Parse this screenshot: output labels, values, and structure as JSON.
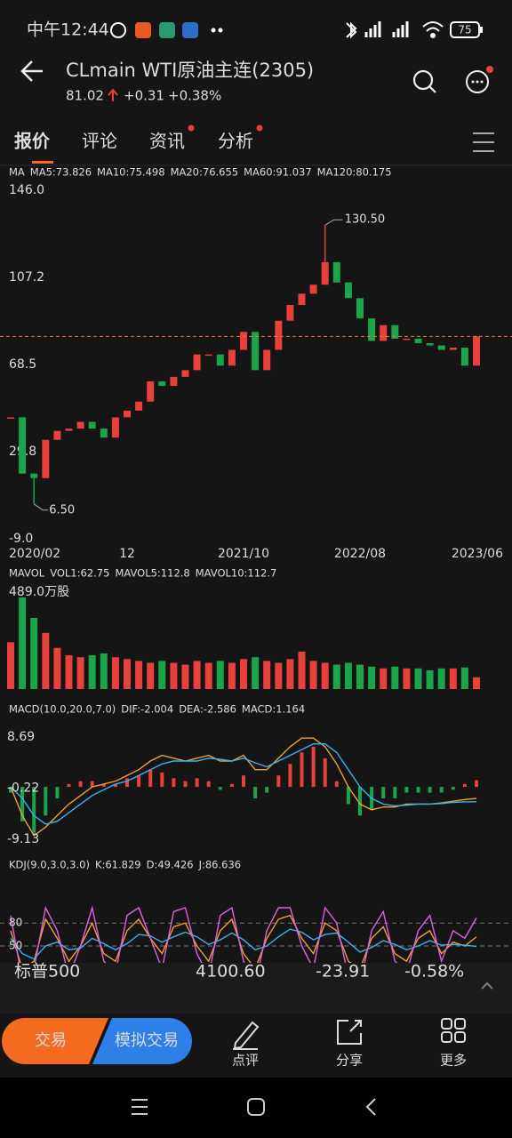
{
  "status_bar": {
    "time": "中午12:44",
    "battery": "75"
  },
  "header": {
    "title": "CLmain  WTI原油主连(2305)",
    "price": "81.02",
    "change": "+0.31",
    "change_pct": "+0.38%"
  },
  "tabs": [
    "报价",
    "评论",
    "资讯",
    "分析"
  ],
  "chart_data": [
    {
      "type": "candlestick",
      "indicator": "MA",
      "legend": [
        {
          "text": "MA5:73.826",
          "color": "#f0a030"
        },
        {
          "text": "MA10:75.498",
          "color": "#3ab0f0"
        },
        {
          "text": "MA20:76.655",
          "color": "#e060e0"
        },
        {
          "text": "MA60:91.037",
          "color": "#2f7fe8"
        },
        {
          "text": "MA120:80.175",
          "color": "#3ac060"
        }
      ],
      "categories": [
        "2020/02",
        null,
        null,
        null,
        null,
        null,
        null,
        null,
        null,
        null,
        "12",
        null,
        null,
        null,
        null,
        null,
        null,
        null,
        null,
        null,
        "2021/10",
        null,
        null,
        null,
        null,
        null,
        null,
        null,
        null,
        null,
        "2022/08",
        null,
        null,
        null,
        null,
        null,
        null,
        null,
        null,
        null,
        "2023/06"
      ],
      "values": [
        45,
        20,
        18,
        35,
        39,
        40,
        43,
        40,
        36,
        45,
        48,
        52,
        61,
        59,
        63,
        66,
        73,
        73,
        68,
        75,
        83,
        66,
        75,
        88,
        95,
        100,
        104,
        114,
        105,
        98,
        89,
        79,
        86,
        80,
        80,
        78,
        77,
        75,
        76,
        68,
        81.02
      ],
      "up_color": "#e8403a",
      "down_color": "#1aa54a",
      "last_line_color": "#e87a2a",
      "high": {
        "value": 130.5,
        "label": "130.50"
      },
      "low": {
        "value": 6.5,
        "label": "6.50"
      },
      "ylim": [
        -9,
        146
      ],
      "yticks": [
        {
          "value": 146,
          "label": "146.0"
        },
        107.2,
        68.5,
        29.8,
        {
          "value": -9,
          "label": "-9.0"
        }
      ]
    },
    {
      "type": "bar",
      "indicator": "MAVOL",
      "legend": [
        {
          "text": "VOL1:62.75",
          "color": "#e8403a"
        },
        {
          "text": "MAVOL5:112.8",
          "color": "#f0a030"
        },
        {
          "text": "MAVOL10:112.7",
          "color": "#3ab0f0"
        }
      ],
      "values": [
        250,
        489,
        380,
        300,
        220,
        180,
        170,
        180,
        190,
        170,
        160,
        150,
        140,
        150,
        140,
        130,
        150,
        140,
        150,
        140,
        160,
        170,
        150,
        140,
        160,
        200,
        150,
        140,
        130,
        140,
        130,
        120,
        110,
        120,
        110,
        110,
        100,
        110,
        110,
        115,
        62.75
      ],
      "ylim": [
        0,
        489
      ],
      "yticks": [
        {
          "value": 489,
          "label": "489.0万股"
        }
      ]
    },
    {
      "type": "macd",
      "indicator": "MACD(10.0,20.0,7.0)",
      "legend": [
        {
          "text": "DIF:-2.004",
          "color": "#f0a030"
        },
        {
          "text": "DEA:-2.586",
          "color": "#3ab0f0"
        },
        {
          "text": "MACD:1.164",
          "color": "#e060e0"
        }
      ],
      "values": [
        -1,
        -6,
        -8,
        -5,
        -2,
        0.5,
        1,
        1,
        0.5,
        0.5,
        1.5,
        2,
        3,
        2.5,
        1.5,
        1,
        1.5,
        1,
        -0.5,
        0.5,
        2,
        -2,
        -1,
        2,
        4,
        6,
        7,
        5,
        1,
        -3,
        -5,
        -4,
        -2,
        -2,
        -1,
        -1,
        -1,
        -1,
        -0.5,
        0.5,
        1.164
      ],
      "series": [
        {
          "color": "#f0a030",
          "values": [
            0,
            -5,
            -8.5,
            -7,
            -5,
            -3,
            -1.5,
            0,
            0.5,
            1,
            2,
            3,
            4.5,
            5.5,
            5,
            4.5,
            5,
            5.5,
            4.5,
            4.5,
            5.5,
            3,
            3,
            5,
            7,
            8.5,
            8.5,
            7,
            4,
            0,
            -3,
            -4,
            -3.5,
            -3.5,
            -3,
            -3,
            -3,
            -2.8,
            -2.5,
            -2.2,
            -2.004
          ]
        },
        {
          "color": "#3ab0f0",
          "values": [
            0,
            -2,
            -5,
            -6.5,
            -6,
            -4.5,
            -3,
            -1.5,
            -0.5,
            0.5,
            1,
            2,
            3,
            4,
            4.5,
            4.5,
            4.5,
            5,
            4.8,
            4.5,
            5,
            4.2,
            3.5,
            4.5,
            5.5,
            6.5,
            7.5,
            7.5,
            6,
            3,
            0,
            -2,
            -3,
            -3.3,
            -3.2,
            -3,
            -3,
            -2.9,
            -2.7,
            -2.6,
            -2.586
          ]
        }
      ],
      "ylim": [
        -9.13,
        8.69
      ],
      "yticks": [
        8.69,
        -0.22,
        -9.13
      ]
    },
    {
      "type": "line",
      "indicator": "KDJ(9.0,3.0,3.0)",
      "legend": [
        {
          "text": "K:61.829",
          "color": "#f0a030"
        },
        {
          "text": "D:49.426",
          "color": "#3ab0f0"
        },
        {
          "text": "J:86.636",
          "color": "#e060e0"
        }
      ],
      "series": [
        {
          "color": "#f0a030",
          "values": [
            70,
            20,
            30,
            85,
            60,
            30,
            50,
            80,
            40,
            30,
            70,
            85,
            60,
            40,
            75,
            80,
            50,
            30,
            70,
            85,
            40,
            20,
            60,
            85,
            90,
            60,
            40,
            80,
            70,
            30,
            20,
            60,
            75,
            40,
            30,
            60,
            70,
            40,
            55,
            50,
            61.829
          ]
        },
        {
          "color": "#3ab0f0",
          "values": [
            60,
            40,
            33,
            50,
            55,
            45,
            47,
            60,
            53,
            45,
            53,
            65,
            63,
            55,
            62,
            68,
            62,
            52,
            58,
            67,
            58,
            45,
            50,
            62,
            72,
            68,
            58,
            65,
            67,
            55,
            42,
            48,
            57,
            52,
            45,
            50,
            57,
            51,
            52,
            51,
            49.426
          ]
        },
        {
          "color": "#e060e0",
          "values": [
            90,
            5,
            20,
            100,
            70,
            10,
            50,
            100,
            30,
            15,
            90,
            100,
            60,
            20,
            95,
            100,
            40,
            10,
            90,
            100,
            30,
            0,
            70,
            100,
            100,
            50,
            20,
            100,
            80,
            10,
            0,
            70,
            95,
            30,
            15,
            70,
            90,
            30,
            70,
            60,
            86.636
          ]
        }
      ],
      "ylim": [
        0,
        100
      ],
      "yticks": [
        80,
        50
      ]
    }
  ],
  "quote_row": {
    "name": "标普500",
    "price": "4100.60",
    "change": "-23.91",
    "change_pct": "-0.58%"
  },
  "buttons": [
    "交易",
    "模拟交易"
  ],
  "actions": [
    "点评",
    "分享",
    "更多"
  ]
}
